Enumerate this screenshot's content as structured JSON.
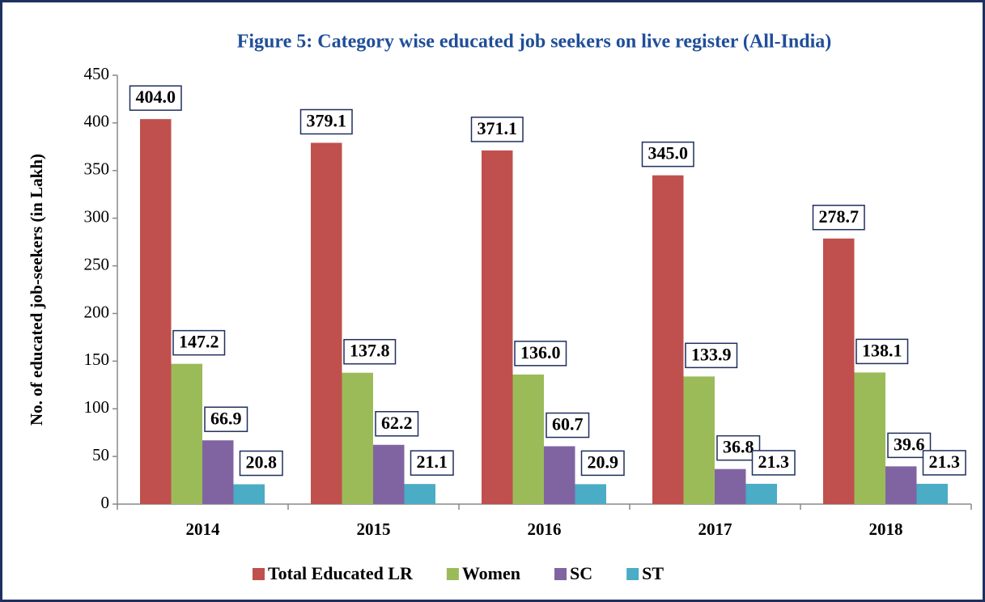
{
  "chart_data": {
    "type": "bar",
    "title": "Figure 5: Category wise educated job seekers on live register (All-India)",
    "y_label": "No. of educated job-seekers (in Lakh)",
    "categories": [
      "2014",
      "2015",
      "2016",
      "2017",
      "2018"
    ],
    "series": [
      {
        "name": "Total Educated LR",
        "color": "#c0504d",
        "values": [
          404.0,
          379.1,
          371.1,
          345.0,
          278.7
        ],
        "value_labels": [
          "404.0",
          "379.1",
          "371.1",
          "345.0",
          "278.7"
        ]
      },
      {
        "name": "Women",
        "color": "#9bbb59",
        "values": [
          147.2,
          137.8,
          136.0,
          133.9,
          138.1
        ],
        "value_labels": [
          "147.2",
          "137.8",
          "136.0",
          "133.9",
          "138.1"
        ]
      },
      {
        "name": "SC",
        "color": "#8064a2",
        "values": [
          66.9,
          62.2,
          60.7,
          36.8,
          39.6
        ],
        "value_labels": [
          "66.9",
          "62.2",
          "60.7",
          "36.8",
          "39.6"
        ]
      },
      {
        "name": "ST",
        "color": "#4bacc6",
        "values": [
          20.8,
          21.1,
          20.9,
          21.3,
          21.3
        ],
        "value_labels": [
          "20.8",
          "21.1",
          "20.9",
          "21.3",
          "21.3"
        ]
      }
    ],
    "ylim": [
      0,
      450
    ],
    "yticks": [
      0,
      50,
      100,
      150,
      200,
      250,
      300,
      350,
      400,
      450
    ],
    "grid": false,
    "legend": "bottom"
  }
}
